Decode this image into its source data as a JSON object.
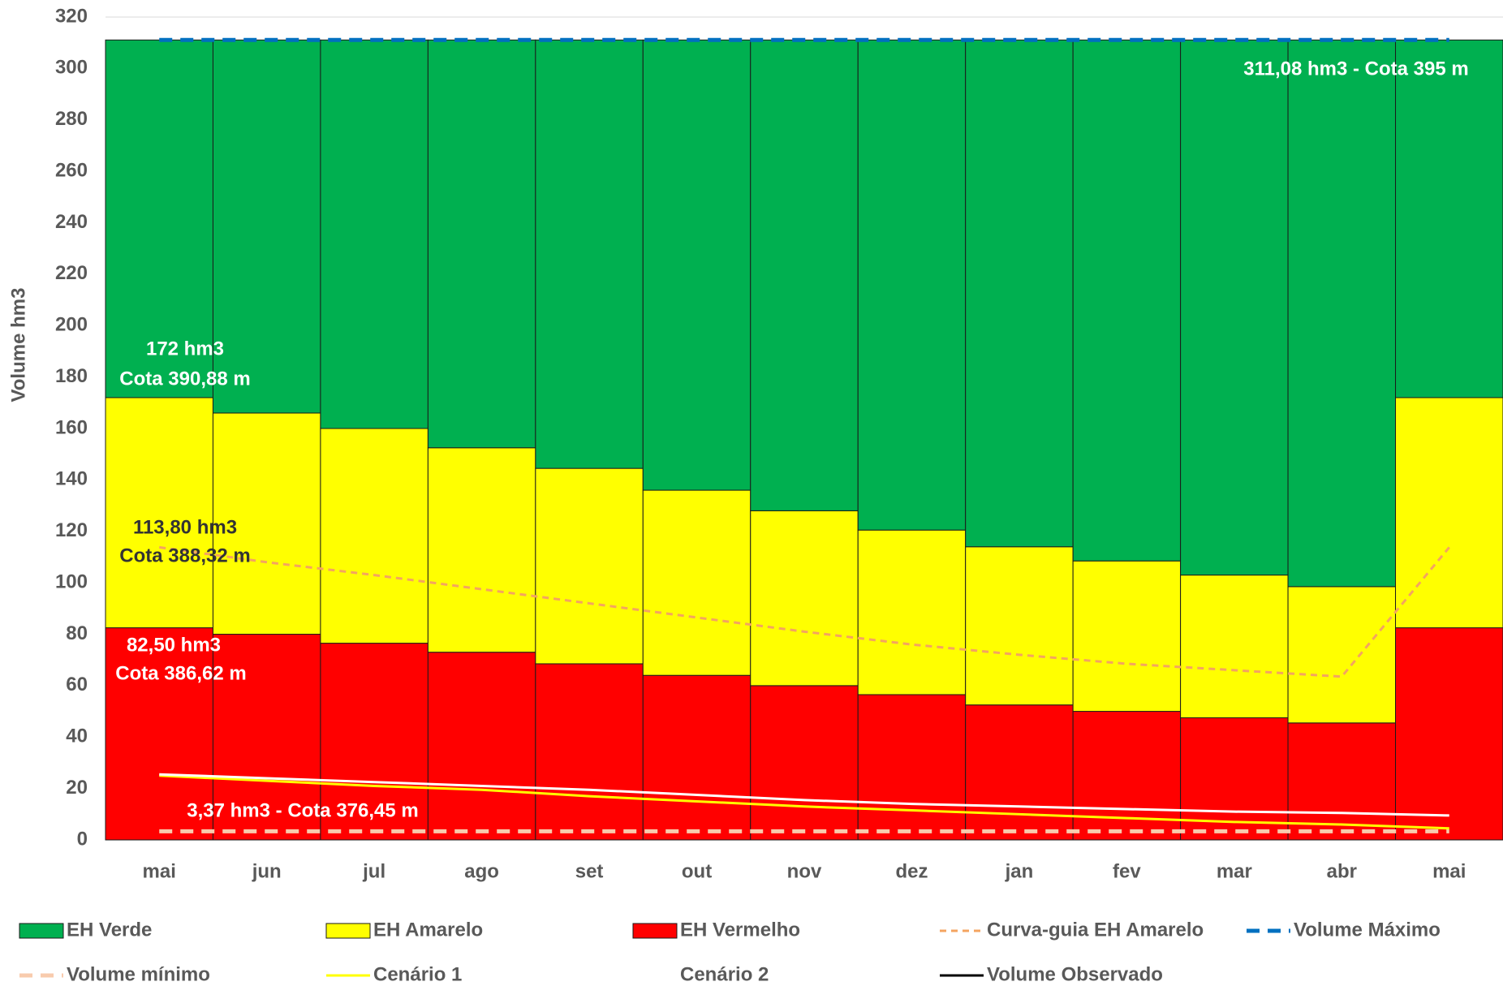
{
  "chart_data": {
    "type": "bar",
    "stacked": true,
    "y_label": "Volume hm3",
    "categories": [
      "mai",
      "jun",
      "jul",
      "ago",
      "set",
      "out",
      "nov",
      "dez",
      "jan",
      "fev",
      "mar",
      "abr",
      "mai"
    ],
    "ylim": [
      0,
      320
    ],
    "yticks": [
      0,
      20,
      40,
      60,
      80,
      100,
      120,
      140,
      160,
      180,
      200,
      220,
      240,
      260,
      280,
      300,
      320
    ],
    "grid": true,
    "series": [
      {
        "name": "EH Verde",
        "type": "bar",
        "color": "#00b050",
        "values": [
          139.08,
          145.08,
          151.08,
          158.58,
          166.58,
          175.08,
          183.08,
          190.58,
          197.08,
          202.58,
          208.08,
          212.58,
          139.08
        ]
      },
      {
        "name": "EH Amarelo",
        "type": "bar",
        "color": "#ffff00",
        "values": [
          89.5,
          86,
          83.5,
          79.5,
          76,
          72,
          68,
          64,
          61.5,
          58.5,
          55.5,
          53,
          89.5
        ]
      },
      {
        "name": "EH Vermelho",
        "type": "bar",
        "color": "#ff0000",
        "values": [
          82.5,
          80,
          76.5,
          73,
          68.5,
          64,
          60,
          56.5,
          52.5,
          50,
          47.5,
          45.5,
          82.5
        ]
      },
      {
        "name": "Curva-guia EH Amarelo",
        "type": "line",
        "dash": "short",
        "color": "#f4a460",
        "values": [
          113.8,
          108,
          103,
          97.5,
          92,
          86.5,
          81,
          76,
          72,
          68.5,
          66,
          63.5,
          113.8
        ]
      },
      {
        "name": "Volume Máximo",
        "type": "line",
        "dash": "long",
        "color": "#0070c0",
        "values": [
          311.08,
          311.08,
          311.08,
          311.08,
          311.08,
          311.08,
          311.08,
          311.08,
          311.08,
          311.08,
          311.08,
          311.08,
          311.08
        ]
      },
      {
        "name": "Volume mínimo",
        "type": "line",
        "dash": "long",
        "color": "#f8cbad",
        "values": [
          3.37,
          3.37,
          3.37,
          3.37,
          3.37,
          3.37,
          3.37,
          3.37,
          3.37,
          3.37,
          3.37,
          3.37,
          3.37
        ]
      },
      {
        "name": "Cenário 1",
        "type": "line",
        "color": "#ffff00",
        "values": [
          25,
          23,
          21,
          19.5,
          17,
          15,
          13,
          11.5,
          10,
          8.5,
          7,
          6,
          4.5
        ]
      },
      {
        "name": "Cenário 2",
        "type": "line",
        "color": "#ffffff",
        "values": [
          25.5,
          24,
          22.5,
          21,
          19.5,
          17.5,
          15.5,
          14,
          13,
          12,
          11,
          10.5,
          9.5
        ]
      },
      {
        "name": "Volume Observado",
        "type": "line",
        "color": "#000000",
        "values": [
          null,
          null,
          null,
          null,
          null,
          null,
          null,
          null,
          null,
          null,
          null,
          null,
          null
        ]
      }
    ],
    "annotations": [
      "311,08 hm3 - Cota 395 m",
      "172 hm3",
      "Cota 390,88 m",
      "113,80 hm3",
      "Cota 388,32 m",
      "82,50 hm3",
      "Cota 386,62 m",
      "3,37 hm3 - Cota 376,45 m"
    ]
  }
}
